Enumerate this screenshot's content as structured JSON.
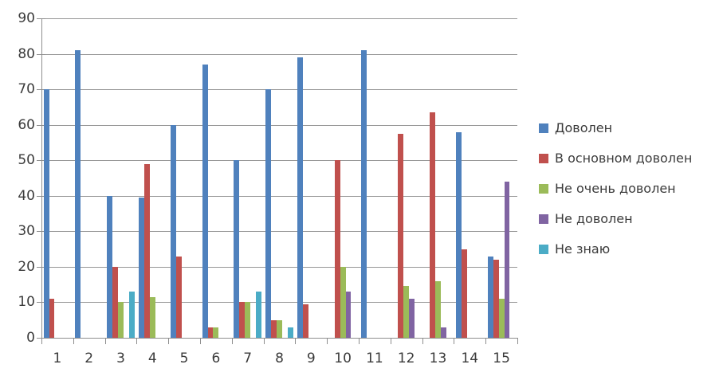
{
  "chart_data": {
    "type": "bar",
    "title": "",
    "xlabel": "",
    "ylabel": "",
    "categories": [
      "1",
      "2",
      "3",
      "4",
      "5",
      "6",
      "7",
      "8",
      "9",
      "10",
      "11",
      "12",
      "13",
      "14",
      "15"
    ],
    "series": [
      {
        "name": "Доволен",
        "color": "#4F81BD",
        "values": [
          70,
          81,
          40,
          39.5,
          60,
          77,
          50,
          70,
          79,
          null,
          81,
          null,
          null,
          58,
          23
        ]
      },
      {
        "name": "В основном доволен",
        "color": "#C0504D",
        "values": [
          11,
          null,
          20,
          49,
          23,
          3,
          10,
          5,
          9.5,
          50,
          null,
          57.5,
          63.5,
          25,
          22
        ]
      },
      {
        "name": "Не очень доволен",
        "color": "#9BBB59",
        "values": [
          null,
          null,
          10,
          11.5,
          null,
          3,
          10,
          5,
          null,
          20,
          null,
          14.5,
          16,
          null,
          11
        ]
      },
      {
        "name": "Не доволен",
        "color": "#8064A2",
        "values": [
          null,
          null,
          null,
          null,
          null,
          null,
          null,
          null,
          null,
          13,
          null,
          11,
          3,
          null,
          44
        ]
      },
      {
        "name": "Не знаю",
        "color": "#4BACC6",
        "values": [
          null,
          null,
          13,
          null,
          null,
          null,
          13,
          3,
          null,
          null,
          null,
          null,
          null,
          null,
          null
        ]
      }
    ],
    "ylim": [
      0,
      90
    ],
    "ytick_step": 10,
    "ytick_labels": [
      "0",
      "10",
      "20",
      "30",
      "40",
      "50",
      "60",
      "70",
      "80",
      "90"
    ],
    "grid": true,
    "legend_position": "right",
    "colors": {
      "gridline": "#969696",
      "axis": "#8e8e8e",
      "axis_text": "#3b3b3b",
      "background": "#ffffff"
    }
  }
}
